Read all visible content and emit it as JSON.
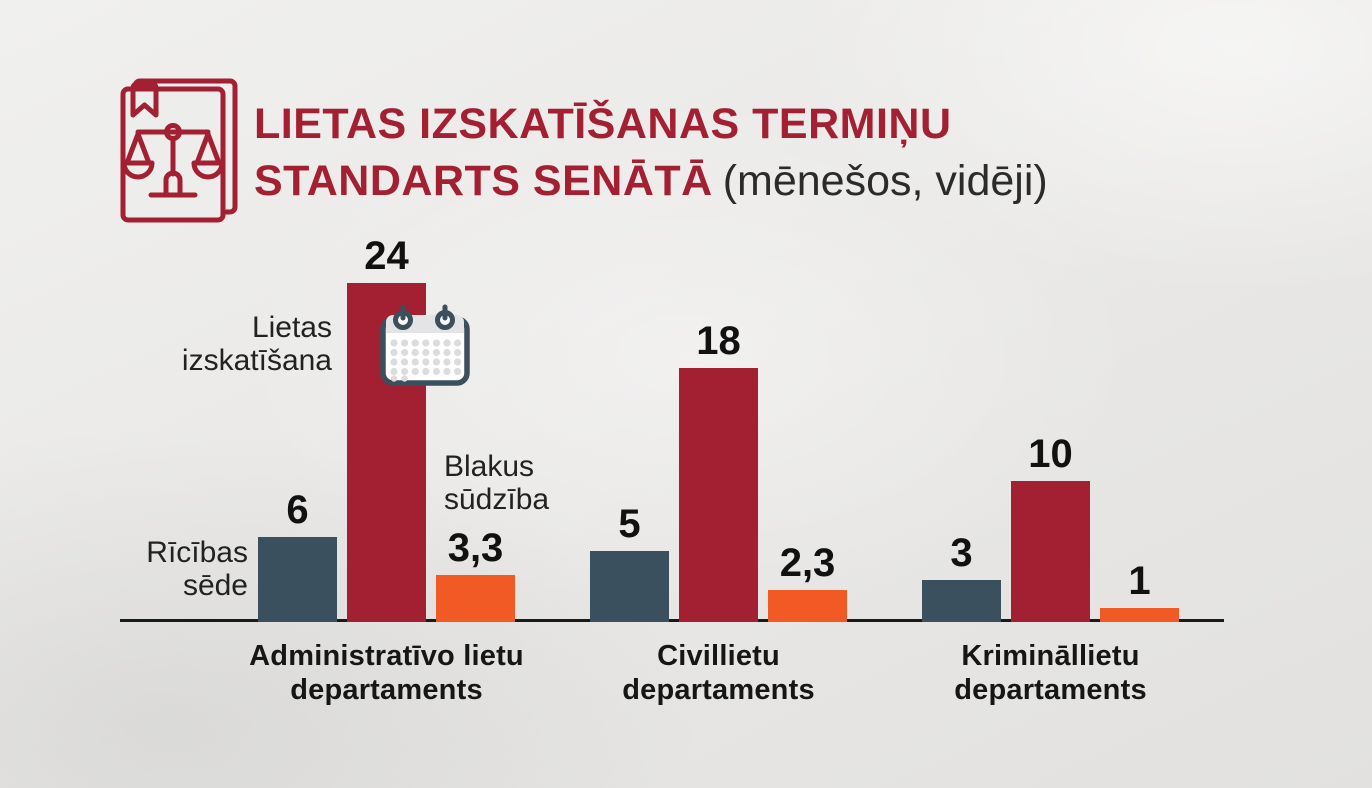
{
  "header": {
    "title_line1": "LIETAS IZSKATĪŠANAS TERMIŅU",
    "title_line2": "STANDARTS SENĀTĀ",
    "title_suffix": "(mēnešos, vidēji)",
    "logo_icon": "scales-of-justice-document-icon"
  },
  "annotations": {
    "ricibas_sede": "Rīcības\nsēde",
    "lietas_izskatisana": "Lietas\nizskatīšana",
    "blakus_sudziba": "Blakus\nsūdzība",
    "calendar_icon": "calendar-icon"
  },
  "colors": {
    "accent_red": "#a32033",
    "slate": "#3b505e",
    "orange": "#f15a25",
    "axis": "#1a1a1a",
    "text_dark": "#1e1e1e",
    "calendar_stroke": "#3c4f5c"
  },
  "chart_data": {
    "type": "bar",
    "title": "Lietas izskatīšanas termiņu standarts Senātā (mēnešos, vidēji)",
    "unit": "mēneši",
    "categories": [
      "Administratīvo lietu\ndepartaments",
      "Civillietu\ndepartaments",
      "Krimināllietu\ndepartaments"
    ],
    "series": [
      {
        "name": "Rīcības sēde",
        "color": "#3b505e",
        "values": [
          6,
          5,
          3
        ],
        "labels": [
          "6",
          "5",
          "3"
        ]
      },
      {
        "name": "Lietas izskatīšana",
        "color": "#a32033",
        "values": [
          24,
          18,
          10
        ],
        "labels": [
          "24",
          "18",
          "10"
        ]
      },
      {
        "name": "Blakus sūdzība",
        "color": "#f15a25",
        "values": [
          3.3,
          2.3,
          1
        ],
        "labels": [
          "3,3",
          "2,3",
          "1"
        ]
      }
    ],
    "ylim": [
      0,
      24
    ],
    "grid": false,
    "legend_position": "annotations-beside-bars"
  }
}
